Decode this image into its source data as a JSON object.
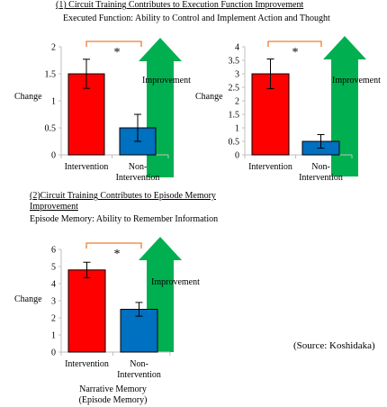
{
  "section1": {
    "heading": "(1) Circuit Training Contributes to Execution Function Improvement",
    "subheading": "Executed Function: Ability to Control and Implement Action and Thought"
  },
  "section2": {
    "heading_line1": "(2)Circuit Training Contributes to Episode Memory",
    "heading_line2": "Improvement",
    "subheading": "Episode Memory:  Ability to Remember Information"
  },
  "source": "(Source:   Koshidaka)",
  "colors": {
    "intervention": "#ff0000",
    "non_intervention": "#0070c0",
    "arrow": "#00b050",
    "bracket": "#ed7d31",
    "axis": "#bfbfbf"
  },
  "chart_data": [
    {
      "type": "bar",
      "categories": [
        "Intervention",
        "Non-\nIntervention"
      ],
      "values": [
        1.5,
        0.5
      ],
      "errors": [
        0.27,
        0.25
      ],
      "ylim": [
        0,
        2
      ],
      "ticks": [
        "0",
        "0.5",
        "1",
        "1.5",
        "2"
      ],
      "ylabel": "Change",
      "significance": "*",
      "arrow_label": "Improvement",
      "xlabel": ""
    },
    {
      "type": "bar",
      "categories": [
        "Intervention",
        "Non-\nIntervention"
      ],
      "values": [
        3.0,
        0.5
      ],
      "errors": [
        0.55,
        0.25
      ],
      "ylim": [
        0,
        4
      ],
      "ticks": [
        "0",
        "0.5",
        "1",
        "1.5",
        "2",
        "2.5",
        "3",
        "3.5",
        "4"
      ],
      "ylabel": "Change",
      "significance": "*",
      "arrow_label": "Improvement",
      "xlabel": ""
    },
    {
      "type": "bar",
      "categories": [
        "Intervention",
        "Non-\nIntervention"
      ],
      "values": [
        4.8,
        2.5
      ],
      "errors": [
        0.45,
        0.4
      ],
      "ylim": [
        0,
        6
      ],
      "ticks": [
        "0",
        "1",
        "2",
        "3",
        "4",
        "5",
        "6"
      ],
      "ylabel": "Change",
      "significance": "*",
      "arrow_label": "Improvement",
      "xlabel": "Narrative Memory\n(Episode Memory)"
    }
  ]
}
